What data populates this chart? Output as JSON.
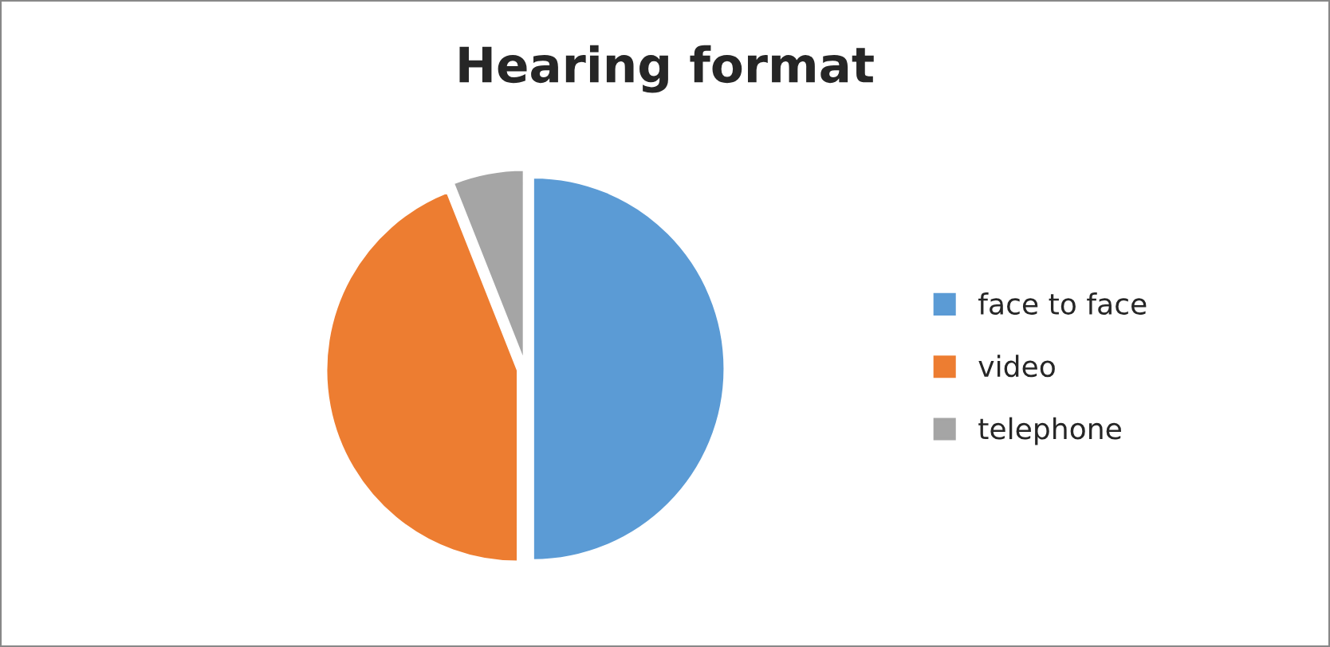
{
  "chart_data": {
    "type": "pie",
    "title": "Hearing format",
    "categories": [
      "face to face",
      "video",
      "telephone"
    ],
    "values": [
      50,
      44,
      6
    ],
    "colors": [
      "#5b9bd5",
      "#ed7d31",
      "#a5a5a5"
    ],
    "legend": "right"
  }
}
